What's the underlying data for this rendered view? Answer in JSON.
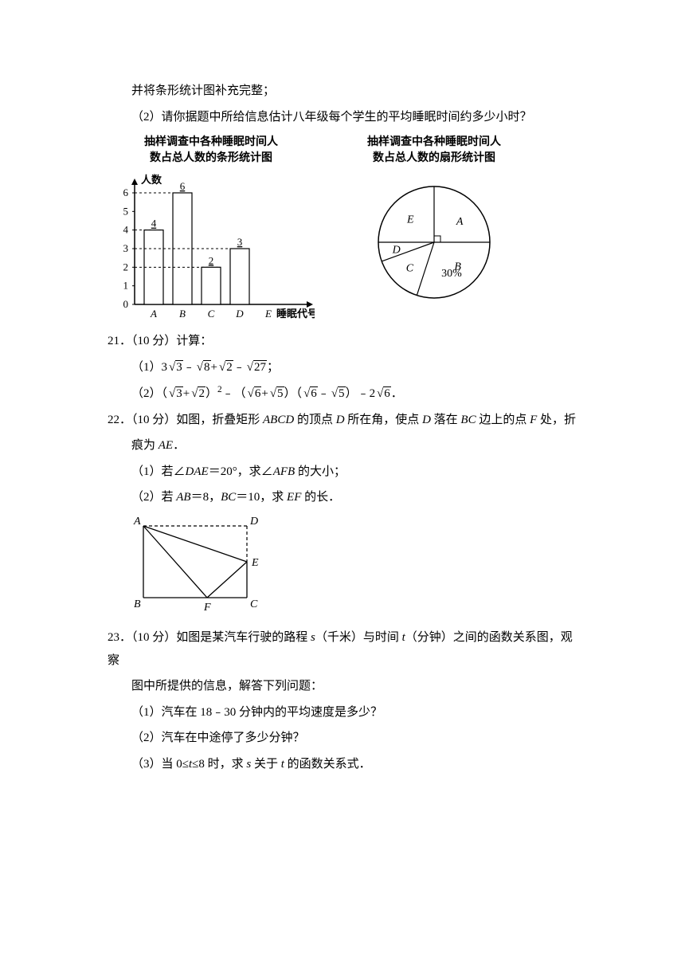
{
  "topText": {
    "cont1": "并将条形统计图补充完整；",
    "q2": "（2）请你据题中所给信息估计八年级每个学生的平均睡眠时间约多少小时？"
  },
  "barChart": {
    "type": "bar",
    "title_line1": "抽样调查中各种睡眠时间人",
    "title_line2": "数占总人数的条形统计图",
    "yAxisLabel": "人数",
    "xAxisLabel": "睡眠代号",
    "categories": [
      "A",
      "B",
      "C",
      "D",
      "E"
    ],
    "values": [
      4,
      6,
      2,
      3,
      0
    ],
    "valueLabels": [
      "4",
      "6",
      "2",
      "3",
      ""
    ],
    "yTicks": [
      0,
      1,
      2,
      3,
      4,
      5,
      6
    ],
    "barFill": "#ffffff",
    "barStroke": "#000000",
    "gridDash": "3,3",
    "axisColor": "#000000",
    "barWidth": 24
  },
  "pieChart": {
    "type": "pie",
    "title_line1": "抽样调查中各种睡眠时间人",
    "title_line2": "数占总人数的扇形统计图",
    "labels": {
      "A": "A",
      "B": "B",
      "C": "C",
      "D": "D",
      "E": "E"
    },
    "bText": "30%",
    "stroke": "#000000",
    "fill": "#ffffff"
  },
  "q21": {
    "header": "21．（10 分）计算：",
    "p1_pre": "（1）",
    "p1_a": "3",
    "p1_b": "3",
    "p1_c": "8",
    "p1_d": "2",
    "p1_e": "27",
    "p2_pre": "（2）（",
    "p2_a": "3",
    "p2_b": "2",
    "p2_mid": "）",
    "p2_exp": "2",
    "p2_c": "6",
    "p2_d": "5",
    "p2_e": "6",
    "p2_f": "5",
    "p2_g": "2",
    "p2_h": "6"
  },
  "q22": {
    "header_a": "22．（10 分）如图，折叠矩形 ",
    "abcd": "ABCD",
    "header_b": " 的顶点 ",
    "d1": "D",
    "header_c": " 所在角，使点 ",
    "d2": "D",
    "header_d": " 落在 ",
    "bc": "BC",
    "header_e": " 边上的点 ",
    "f": "F",
    "header_f": " 处，折",
    "line2_a": "痕为 ",
    "ae": "AE",
    "line2_b": "．",
    "p1": "（1）若∠",
    "dae": "DAE",
    "p1b": "＝20°，求∠",
    "afb": "AFB",
    "p1c": " 的大小；",
    "p2": "（2）若 ",
    "ab": "AB",
    "p2b": "＝8，",
    "bc2": "BC",
    "p2c": "＝10，求 ",
    "ef": "EF",
    "p2d": " 的长．",
    "geomLabels": {
      "A": "A",
      "B": "B",
      "C": "C",
      "D": "D",
      "E": "E",
      "F": "F"
    }
  },
  "q23": {
    "header_a": "23．（10 分）如图是某汽车行驶的路程 ",
    "s": "s",
    "header_b": "（千米）与时间 ",
    "t": "t",
    "header_c": "（分钟）之间的函数关系图，观察",
    "line2": "图中所提供的信息，解答下列问题：",
    "p1": "（1）汽车在 18﹣30 分钟内的平均速度是多少？",
    "p2": "（2）汽车在中途停了多少分钟？",
    "p3a": "（3）当 0≤",
    "p3b": "≤8 时，求 ",
    "p3c": " 关于 ",
    "p3d": " 的函数关系式．"
  }
}
